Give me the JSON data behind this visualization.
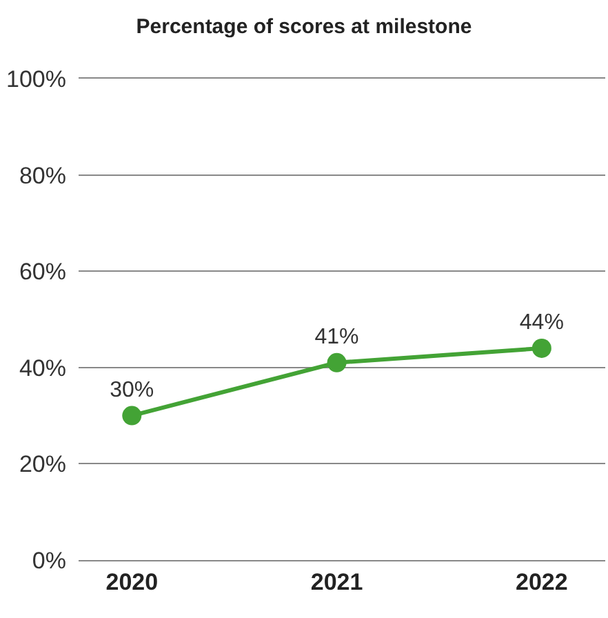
{
  "chart_data": {
    "type": "line",
    "title": "Percentage of scores at milestone",
    "categories": [
      "2020",
      "2021",
      "2022"
    ],
    "series": [
      {
        "color": "#43a335",
        "values": [
          30,
          41,
          44
        ],
        "value_labels": [
          "30%",
          "41%",
          "44%"
        ]
      }
    ],
    "ylim": [
      0,
      100
    ],
    "yticks": [
      {
        "value": 0,
        "label": "0%"
      },
      {
        "value": 20,
        "label": "20%"
      },
      {
        "value": 40,
        "label": "40%"
      },
      {
        "value": 60,
        "label": "60%"
      },
      {
        "value": 80,
        "label": "80%"
      },
      {
        "value": 100,
        "label": "100%"
      }
    ],
    "grid": "y",
    "marker": "circle",
    "line_style": "solid"
  }
}
